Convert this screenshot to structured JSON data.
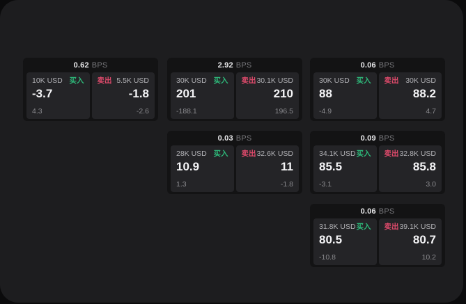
{
  "labels": {
    "bps_unit": "BPS",
    "buy": "买入",
    "sell": "卖出"
  },
  "colors": {
    "page_bg": "#0b0b0c",
    "window_bg": "#1d1d1f",
    "card_bg": "#131314",
    "panel_bg": "#242427",
    "header_value": "#e8e8ea",
    "header_unit": "#77777b",
    "notional_text": "#b1b1b5",
    "value_text": "#f4f4f6",
    "sub_text": "#8a8a8e",
    "buy": "#2eb97a",
    "sell": "#de4a6b"
  },
  "cards": [
    {
      "col": 0,
      "row": 0,
      "bps": "0.62",
      "buy": {
        "notional": "10K USD",
        "value": "-3.7",
        "delta": "4.3"
      },
      "sell": {
        "notional": "5.5K USD",
        "value": "-1.8",
        "delta": "-2.6"
      }
    },
    {
      "col": 1,
      "row": 0,
      "bps": "2.92",
      "buy": {
        "notional": "30K USD",
        "value": "201",
        "delta": "-188.1"
      },
      "sell": {
        "notional": "30.1K USD",
        "value": "210",
        "delta": "196.5"
      }
    },
    {
      "col": 2,
      "row": 0,
      "bps": "0.06",
      "buy": {
        "notional": "30K USD",
        "value": "88",
        "delta": "-4.9"
      },
      "sell": {
        "notional": "30K USD",
        "value": "88.2",
        "delta": "4.7"
      }
    },
    {
      "col": 1,
      "row": 1,
      "bps": "0.03",
      "buy": {
        "notional": "28K USD",
        "value": "10.9",
        "delta": "1.3"
      },
      "sell": {
        "notional": "32.6K USD",
        "value": "11",
        "delta": "-1.8"
      }
    },
    {
      "col": 2,
      "row": 1,
      "bps": "0.09",
      "buy": {
        "notional": "34.1K USD",
        "value": "85.5",
        "delta": "-3.1"
      },
      "sell": {
        "notional": "32.8K USD",
        "value": "85.8",
        "delta": "3.0"
      }
    },
    {
      "col": 2,
      "row": 2,
      "bps": "0.06",
      "buy": {
        "notional": "31.8K USD",
        "value": "80.5",
        "delta": "-10.8"
      },
      "sell": {
        "notional": "39.1K USD",
        "value": "80.7",
        "delta": "10.2"
      }
    }
  ]
}
